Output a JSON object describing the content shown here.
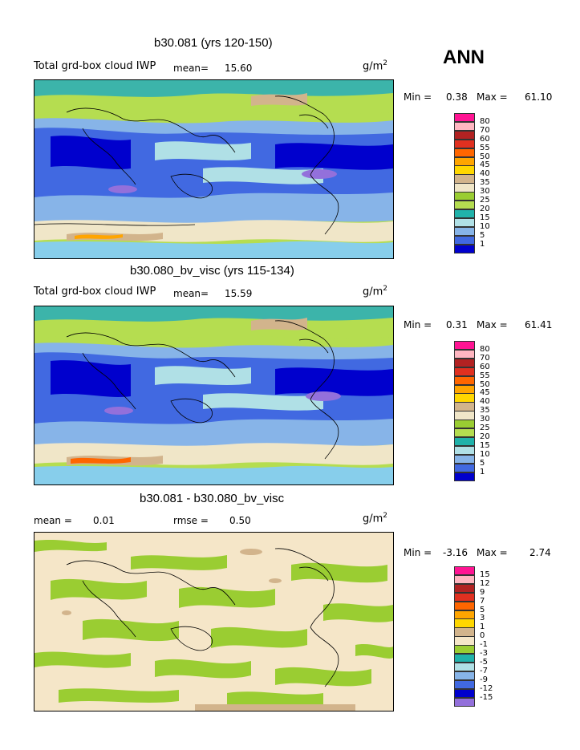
{
  "season": "ANN",
  "panels": [
    {
      "title": "b30.081 (yrs 120-150)",
      "subtitle": "Total grd-box cloud IWP",
      "mean_label": "mean=",
      "mean_value": "15.60",
      "unit": "g/m",
      "unit_sup": "2",
      "min_label": "Min =",
      "min_value": "0.38",
      "max_label": "Max =",
      "max_value": "61.10",
      "levels": [
        "80",
        "70",
        "60",
        "55",
        "50",
        "45",
        "40",
        "35",
        "30",
        "25",
        "20",
        "15",
        "10",
        "5",
        "1"
      ]
    },
    {
      "title": "b30.080_bv_visc (yrs 115-134)",
      "subtitle": "Total grd-box cloud IWP",
      "mean_label": "mean=",
      "mean_value": "15.59",
      "unit": "g/m",
      "unit_sup": "2",
      "min_label": "Min =",
      "min_value": "0.31",
      "max_label": "Max =",
      "max_value": "61.41",
      "levels": [
        "80",
        "70",
        "60",
        "55",
        "50",
        "45",
        "40",
        "35",
        "30",
        "25",
        "20",
        "15",
        "10",
        "5",
        "1"
      ]
    },
    {
      "title": "b30.081 - b30.080_bv_visc",
      "mean_label": "mean =",
      "mean_value": "0.01",
      "rmse_label": "rmse =",
      "rmse_value": "0.50",
      "unit": "g/m",
      "unit_sup": "2",
      "min_label": "Min =",
      "min_value": "-3.16",
      "max_label": "Max =",
      "max_value": "2.74",
      "levels": [
        "15",
        "12",
        "9",
        "7",
        "5",
        "3",
        "1",
        "0",
        "-1",
        "-3",
        "-5",
        "-7",
        "-9",
        "-12",
        "-15"
      ]
    }
  ],
  "chart_data": [
    {
      "type": "heatmap",
      "title": "b30.081 (yrs 120-150)",
      "subtitle": "Total grd-box cloud IWP",
      "mean": 15.6,
      "min": 0.38,
      "max": 61.1,
      "units": "g/m2",
      "contour_levels": [
        1,
        5,
        10,
        15,
        20,
        25,
        30,
        35,
        40,
        45,
        50,
        55,
        60,
        70,
        80
      ],
      "colors": [
        "#9370DB",
        "#0000CD",
        "#4169E1",
        "#87B4E8",
        "#B0E0E6",
        "#20B2AA",
        "#9ACD32",
        "#B5CD3E",
        "#D2B48C",
        "#FFD700",
        "#FFA500",
        "#FF6600",
        "#E03020",
        "#B22222",
        "#FFB6C1",
        "#FF1493"
      ]
    },
    {
      "type": "heatmap",
      "title": "b30.080_bv_visc (yrs 115-134)",
      "subtitle": "Total grd-box cloud IWP",
      "mean": 15.59,
      "min": 0.31,
      "max": 61.41,
      "units": "g/m2",
      "contour_levels": [
        1,
        5,
        10,
        15,
        20,
        25,
        30,
        35,
        40,
        45,
        50,
        55,
        60,
        70,
        80
      ],
      "colors": [
        "#9370DB",
        "#0000CD",
        "#4169E1",
        "#87B4E8",
        "#B0E0E6",
        "#20B2AA",
        "#9ACD32",
        "#B5CD3E",
        "#D2B48C",
        "#FFD700",
        "#FFA500",
        "#FF6600",
        "#E03020",
        "#B22222",
        "#FFB6C1",
        "#FF1493"
      ]
    },
    {
      "type": "heatmap",
      "title": "b30.081 - b30.080_bv_visc",
      "mean": 0.01,
      "rmse": 0.5,
      "min": -3.16,
      "max": 2.74,
      "units": "g/m2",
      "contour_levels": [
        -15,
        -12,
        -9,
        -7,
        -5,
        -3,
        -1,
        0,
        1,
        3,
        5,
        7,
        9,
        12,
        15
      ],
      "colors": [
        "#9370DB",
        "#0000CD",
        "#4169E1",
        "#6495ED",
        "#B0E0E6",
        "#20B2AA",
        "#9ACD32",
        "#F5DEB3",
        "#D2B48C",
        "#FFD700",
        "#FFA500",
        "#FF6600",
        "#E03020",
        "#B22222",
        "#FFB6C1",
        "#FF1493"
      ]
    }
  ],
  "palettes": {
    "abs": [
      "#FF1493",
      "#FFB6C1",
      "#B22222",
      "#E03020",
      "#FF6600",
      "#FFA500",
      "#FFD700",
      "#D2B48C",
      "#F0E6C8",
      "#9ACD32",
      "#B5DD50",
      "#20B2AA",
      "#B0E0E6",
      "#87B4E8",
      "#4169E1",
      "#0000CD",
      "#9370DB"
    ],
    "diff": [
      "#FF1493",
      "#FFB6C1",
      "#B22222",
      "#E03020",
      "#FF6600",
      "#FFA500",
      "#FFD700",
      "#D2B48C",
      "#F5E6C8",
      "#9ACD32",
      "#20B2AA",
      "#B0E0E6",
      "#87B4E8",
      "#4169E1",
      "#0000CD",
      "#9370DB"
    ]
  }
}
